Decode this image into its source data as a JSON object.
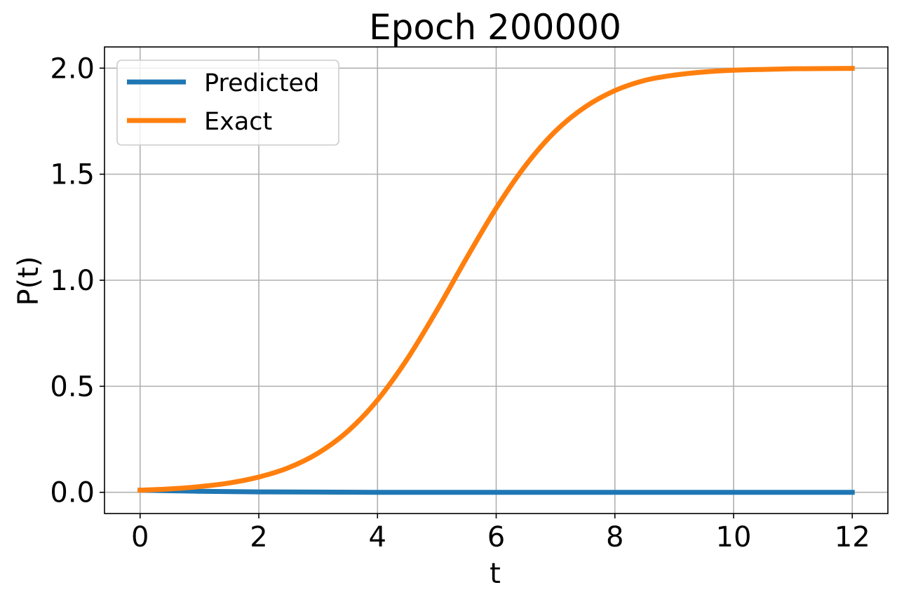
{
  "chart_data": {
    "type": "line",
    "title": "Epoch 200000",
    "xlabel": "t",
    "ylabel": "P(t)",
    "xlim": [
      -0.6,
      12.6
    ],
    "ylim": [
      -0.1,
      2.1
    ],
    "xticks": [
      0,
      2,
      4,
      6,
      8,
      10,
      12
    ],
    "xtick_labels": [
      "0",
      "2",
      "4",
      "6",
      "8",
      "10",
      "12"
    ],
    "yticks": [
      0.0,
      0.5,
      1.0,
      1.5,
      2.0
    ],
    "ytick_labels": [
      "0.0",
      "0.5",
      "1.0",
      "1.5",
      "2.0"
    ],
    "grid": true,
    "legend_position": "top-left",
    "series": [
      {
        "name": "Predicted",
        "color": "#1f77b4",
        "x": [
          0,
          1,
          2,
          3,
          4,
          5,
          6,
          7,
          8,
          9,
          10,
          11,
          12
        ],
        "y": [
          0.01,
          0.005,
          0.002,
          0.001,
          0.0,
          0.0,
          0.0,
          0.0,
          0.0,
          0.0,
          0.0,
          0.0,
          0.0
        ]
      },
      {
        "name": "Exact",
        "color": "#ff7f0e",
        "x": [
          0,
          0.5,
          1,
          1.5,
          2,
          2.5,
          3,
          3.5,
          4,
          4.5,
          5,
          5.5,
          6,
          6.5,
          7,
          7.5,
          8,
          8.5,
          9,
          9.5,
          10,
          10.5,
          11,
          11.5,
          12
        ],
        "y": [
          0.01,
          0.016,
          0.027,
          0.044,
          0.072,
          0.116,
          0.185,
          0.288,
          0.435,
          0.628,
          0.858,
          1.104,
          1.34,
          1.543,
          1.703,
          1.817,
          1.894,
          1.942,
          1.967,
          1.982,
          1.99,
          1.994,
          1.997,
          1.998,
          1.999
        ]
      }
    ]
  }
}
